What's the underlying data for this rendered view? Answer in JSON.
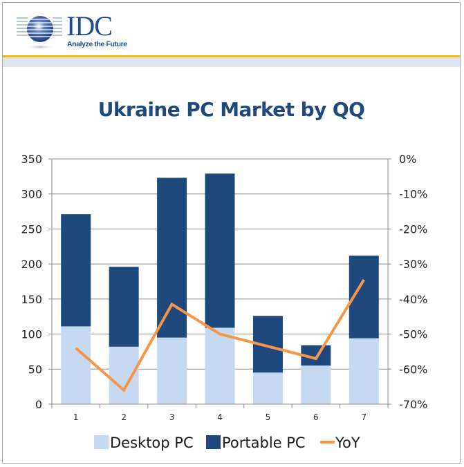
{
  "logo": {
    "name": "IDC",
    "tagline": "Analyze the Future"
  },
  "colors": {
    "desktop": "#c6d9f1",
    "portable": "#1f497d",
    "yoy": "#f79646",
    "gold": "#f5b800",
    "title": "#1f497d"
  },
  "chart_data": {
    "type": "bar",
    "stacked": true,
    "title": "Ukraine PC Market by QQ",
    "xlabel": "",
    "ylabel": "",
    "categories": [
      "1",
      "2",
      "3",
      "4",
      "5",
      "6",
      "7"
    ],
    "series": [
      {
        "name": "Desktop PC",
        "type": "bar",
        "axis": "left",
        "values": [
          111,
          82,
          95,
          109,
          45,
          55,
          94
        ]
      },
      {
        "name": "Portable PC",
        "type": "bar",
        "axis": "left",
        "values": [
          160,
          114,
          228,
          220,
          81,
          29,
          118
        ]
      },
      {
        "name": "YoY",
        "type": "line",
        "axis": "right",
        "values": [
          -54,
          -66,
          -41.5,
          -50,
          -53.5,
          -57,
          -34.5
        ]
      }
    ],
    "ylim": [
      0,
      350
    ],
    "yticks": [
      "0",
      "50",
      "100",
      "150",
      "200",
      "250",
      "300",
      "350"
    ],
    "y2lim": [
      -70,
      0
    ],
    "y2ticks": [
      "-70%",
      "-60%",
      "-50%",
      "-40%",
      "-30%",
      "-20%",
      "-10%",
      "0%"
    ],
    "grid": true,
    "legend": "bottom"
  }
}
